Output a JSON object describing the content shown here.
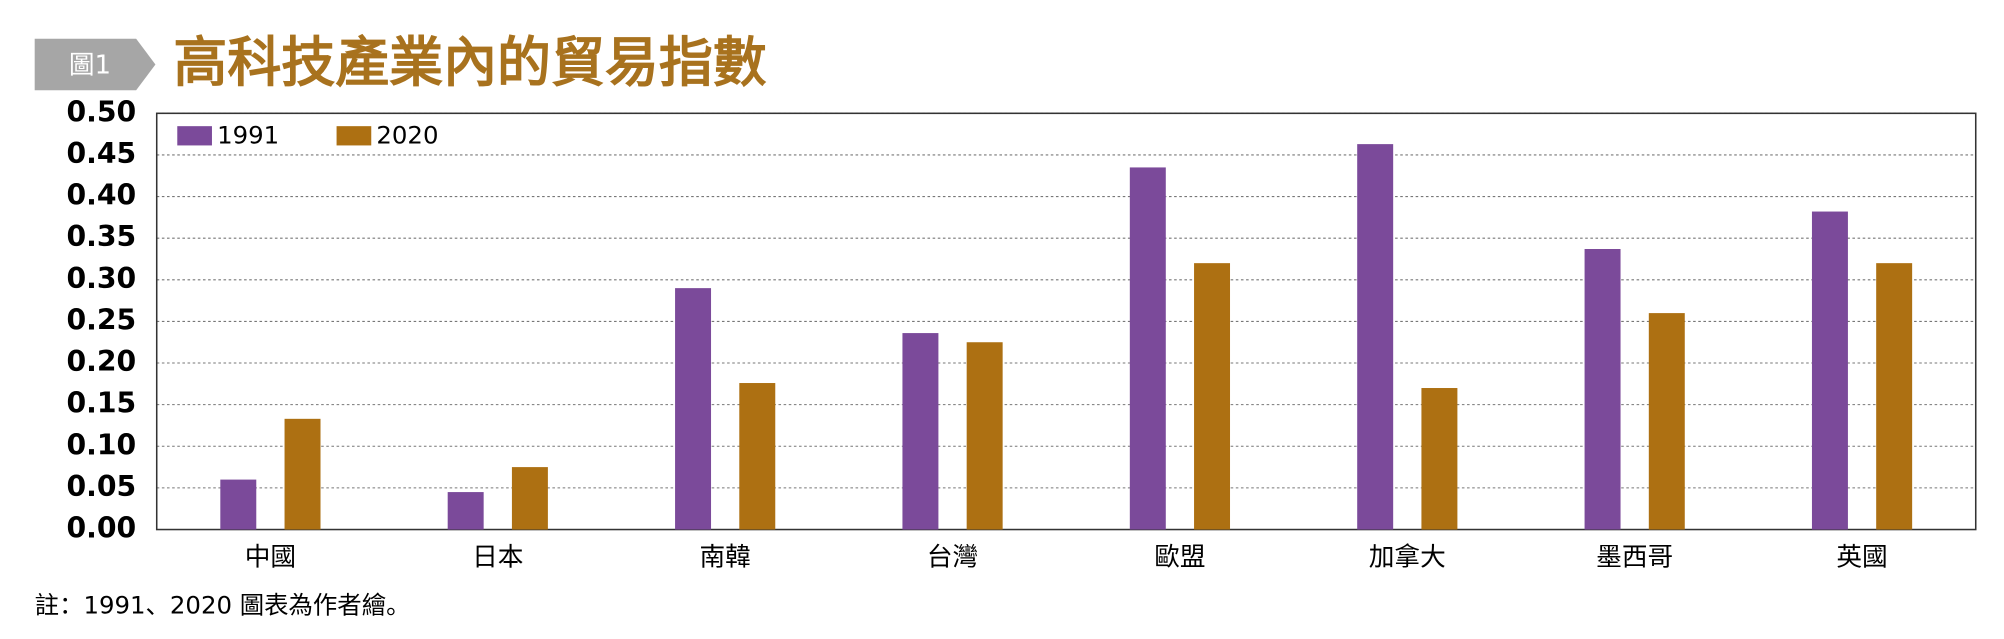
{
  "chart_data": {
    "type": "bar",
    "figure_label": "圖1",
    "title": "高科技產業內的貿易指數",
    "note": "註：1991、2020 圖表為作者繪。",
    "categories": [
      "中國",
      "日本",
      "南韓",
      "台灣",
      "歐盟",
      "加拿大",
      "墨西哥",
      "英國"
    ],
    "series": [
      {
        "name": "1991",
        "color": "#7b4a9a",
        "values": [
          0.06,
          0.045,
          0.29,
          0.236,
          0.435,
          0.463,
          0.337,
          0.382
        ]
      },
      {
        "name": "2020",
        "color": "#ad7012",
        "values": [
          0.133,
          0.075,
          0.176,
          0.225,
          0.32,
          0.17,
          0.26,
          0.32
        ]
      }
    ],
    "ylim": [
      0,
      0.5
    ],
    "yticks": [
      {
        "value": 0,
        "label": "0.00"
      },
      {
        "value": 0.05,
        "label": "0.05"
      },
      {
        "value": 0.1,
        "label": "0.10"
      },
      {
        "value": 0.15,
        "label": "0.15"
      },
      {
        "value": 0.2,
        "label": "0.20"
      },
      {
        "value": 0.25,
        "label": "0.25"
      },
      {
        "value": 0.3,
        "label": "0.30"
      },
      {
        "value": 0.35,
        "label": "0.35"
      },
      {
        "value": 0.4,
        "label": "0.40"
      },
      {
        "value": 0.45,
        "label": "0.45"
      },
      {
        "value": 0.5,
        "label": "0.50"
      }
    ],
    "grid": true,
    "legend": "top-left"
  }
}
